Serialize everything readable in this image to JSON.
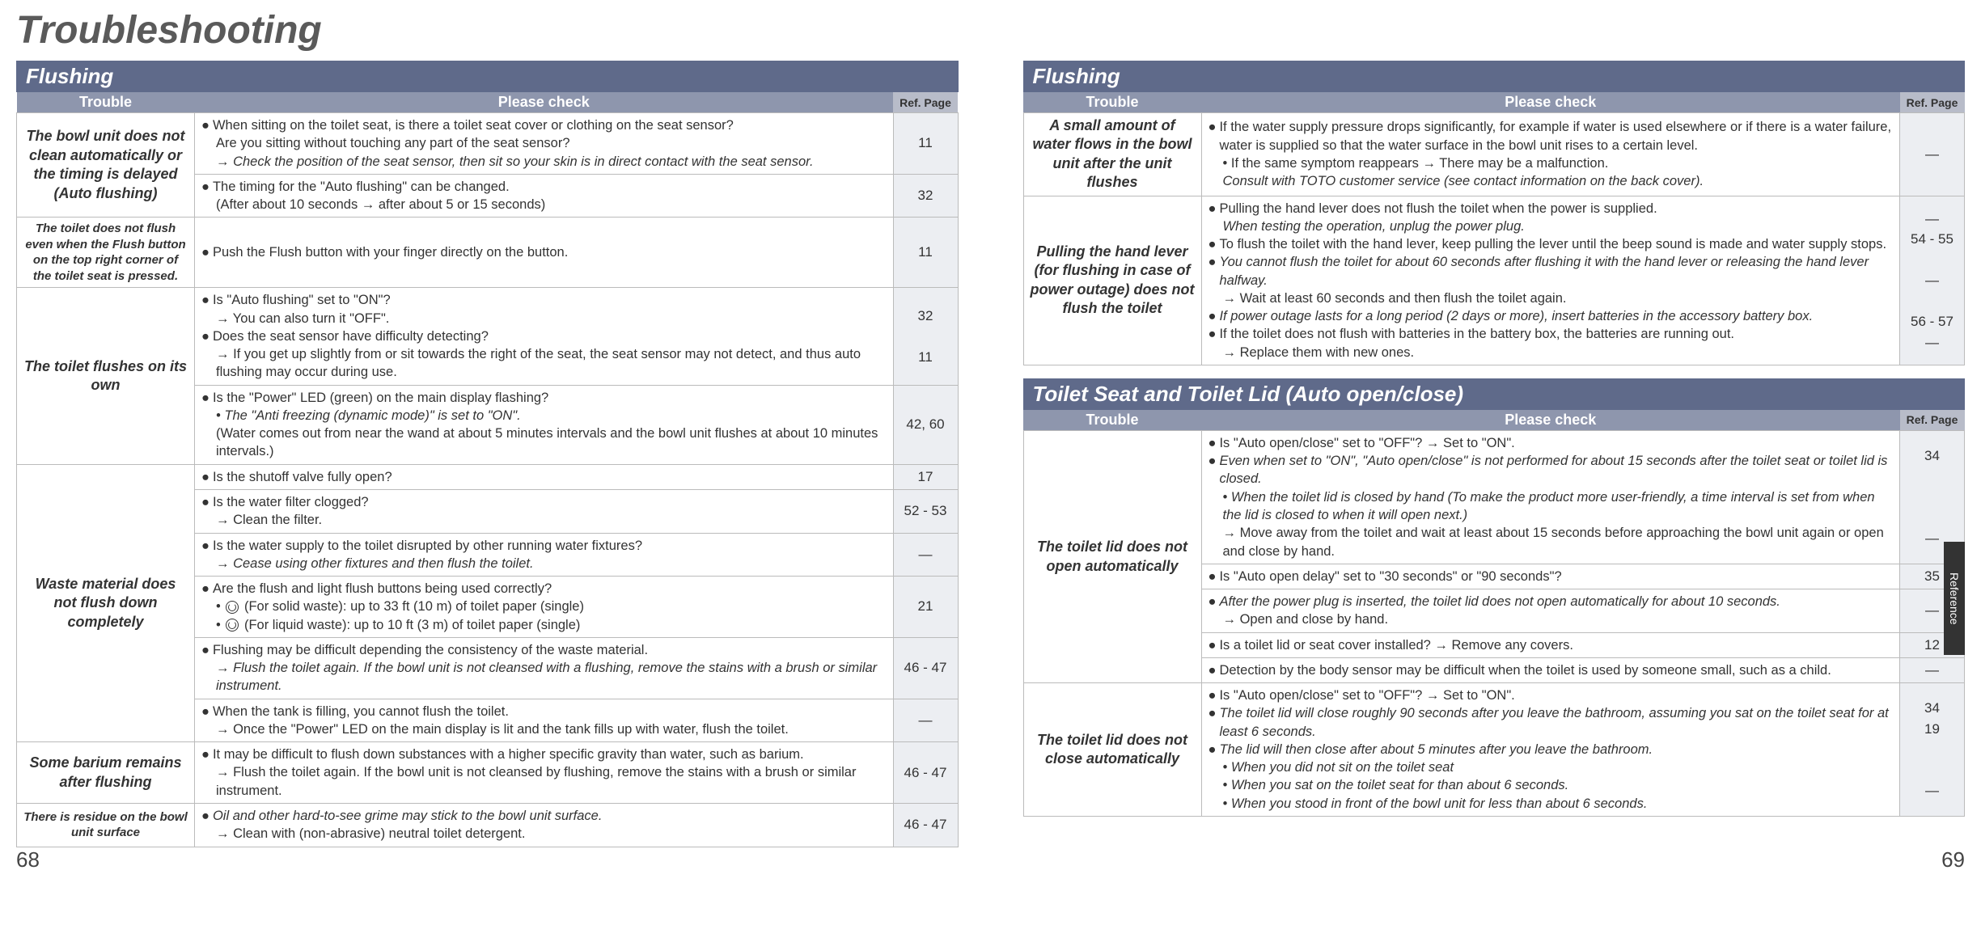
{
  "title": "Troubleshooting",
  "side_tab": "Reference",
  "page_left": "68",
  "page_right": "69",
  "columns": {
    "trouble": "Trouble",
    "check": "Please check",
    "ref": "Ref. Page"
  },
  "left": {
    "section1": {
      "title": "Flushing",
      "rows": [
        {
          "trouble": "The bowl unit does not clean automatically or the timing is delayed (Auto flushing)",
          "trouble_rowspan": 2,
          "checks": [
            {
              "lines": [
                {
                  "t": "bullet",
                  "text": "When sitting on the toilet seat, is there a toilet seat cover or clothing on the seat sensor?"
                },
                {
                  "t": "sub",
                  "text": "Are you sitting without touching any part of the seat sensor?"
                },
                {
                  "t": "sub italic arrow",
                  "text": "Check the position of the seat sensor, then sit so your skin is in direct contact with the seat sensor."
                }
              ],
              "ref": "11"
            },
            {
              "lines": [
                {
                  "t": "bullet",
                  "text": "The timing for the \"Auto flushing\" can be changed."
                },
                {
                  "t": "sub",
                  "text": "(After about 10 seconds → after about 5 or 15 seconds)"
                }
              ],
              "ref": "32"
            }
          ]
        },
        {
          "trouble": "The toilet does not flush even when the Flush button on the top right corner of the toilet seat is pressed.",
          "trouble_rowspan": 1,
          "trouble_small": true,
          "checks": [
            {
              "lines": [
                {
                  "t": "bullet",
                  "text": "Push the Flush button with your finger directly on the button."
                }
              ],
              "ref": "11"
            }
          ]
        },
        {
          "trouble": "The toilet flushes on its own",
          "trouble_rowspan": 2,
          "checks": [
            {
              "lines": [
                {
                  "t": "bullet",
                  "text": "Is \"Auto flushing\" set to \"ON\"?"
                },
                {
                  "t": "sub arrow",
                  "text": "You can also turn it \"OFF\"."
                },
                {
                  "t": "bullet",
                  "text": "Does the seat sensor have difficulty detecting?"
                },
                {
                  "t": "sub arrow",
                  "text": "If you get up slightly from or sit towards the right of the seat, the seat sensor may not detect, and thus auto flushing may occur during use."
                }
              ],
              "ref": "32\n\n11",
              "ref_multi": true
            },
            {
              "lines": [
                {
                  "t": "bullet",
                  "text": "Is the \"Power\" LED (green) on the main display flashing?"
                },
                {
                  "t": "sub dot italic",
                  "text": "The \"Anti freezing (dynamic mode)\" is set to \"ON\"."
                },
                {
                  "t": "sub",
                  "text": "(Water comes out from near the wand at about 5 minutes intervals and the bowl unit flushes at  about 10 minutes intervals.)"
                }
              ],
              "ref": "42, 60"
            }
          ]
        },
        {
          "trouble": "Waste material does not flush down completely",
          "trouble_rowspan": 6,
          "checks": [
            {
              "lines": [
                {
                  "t": "bullet",
                  "text": "Is the shutoff valve fully open?"
                }
              ],
              "ref": "17"
            },
            {
              "lines": [
                {
                  "t": "bullet",
                  "text": "Is the water filter clogged?"
                },
                {
                  "t": "sub arrow",
                  "text": "Clean the filter."
                }
              ],
              "ref": "52 - 53"
            },
            {
              "lines": [
                {
                  "t": "bullet",
                  "text": "Is the water supply to the toilet disrupted by other running water fixtures?"
                },
                {
                  "t": "sub italic arrow",
                  "text": "Cease using other fixtures and then flush the toilet."
                }
              ],
              "ref": "_"
            },
            {
              "lines": [
                {
                  "t": "bullet",
                  "text": "Are the flush and light flush buttons being used correctly?"
                },
                {
                  "t": "sub dot swirl",
                  "text": "(For solid waste): up to 33 ft (10 m) of toilet paper (single)"
                },
                {
                  "t": "sub dot swirl",
                  "text": "(For liquid waste): up to 10 ft (3 m) of toilet paper (single)"
                }
              ],
              "ref": "21"
            },
            {
              "lines": [
                {
                  "t": "bullet",
                  "text": "Flushing may be difficult depending the consistency of the waste material."
                },
                {
                  "t": "sub italic arrow",
                  "text": "Flush the toilet again. If the bowl unit is not cleansed with a flushing, remove the stains with a brush or similar instrument."
                }
              ],
              "ref": "46 - 47"
            },
            {
              "lines": [
                {
                  "t": "bullet",
                  "text": "When the tank is filling, you cannot flush the toilet."
                },
                {
                  "t": "sub arrow",
                  "text": "Once the \"Power\" LED on the main display is lit and the tank fills up with water, flush the toilet."
                }
              ],
              "ref": "_"
            }
          ]
        },
        {
          "trouble": "Some barium remains after flushing",
          "trouble_rowspan": 1,
          "checks": [
            {
              "lines": [
                {
                  "t": "bullet",
                  "text": "It may be difficult to flush down substances with a higher specific gravity than water, such as barium."
                },
                {
                  "t": "sub arrow",
                  "text": "Flush the toilet again. If the bowl unit is not cleansed by flushing, remove the stains with a brush or similar instrument."
                }
              ],
              "ref": "46 - 47"
            }
          ]
        },
        {
          "trouble": "There is residue on the bowl unit surface",
          "trouble_rowspan": 1,
          "trouble_small": true,
          "checks": [
            {
              "lines": [
                {
                  "t": "bullet italic",
                  "text": "Oil and other hard-to-see grime may stick to the bowl unit surface."
                },
                {
                  "t": "sub arrow",
                  "text": "Clean with (non-abrasive) neutral toilet detergent."
                }
              ],
              "ref": "46 - 47"
            }
          ]
        }
      ]
    }
  },
  "right": {
    "section1": {
      "title": "Flushing",
      "rows": [
        {
          "trouble": "A small amount of water flows in the bowl unit after the unit flushes",
          "trouble_rowspan": 1,
          "trouble_italic": true,
          "checks": [
            {
              "lines": [
                {
                  "t": "bullet",
                  "text": "If the water supply pressure drops significantly, for example if water is used elsewhere or if there is a water failure, water is supplied so that the water surface in the bowl unit rises to a certain level."
                },
                {
                  "t": "sub dot",
                  "text": "If the same symptom reappears → There may be a malfunction."
                },
                {
                  "t": "sub italic",
                  "text": "Consult with TOTO customer service  (see contact information on the back cover)."
                }
              ],
              "ref": "_"
            }
          ]
        },
        {
          "trouble": "Pulling the hand lever (for flushing in case of power outage) does not flush the toilet",
          "trouble_rowspan": 1,
          "checks": [
            {
              "lines": [
                {
                  "t": "bullet",
                  "text": "Pulling the hand lever does not flush the toilet when the power is supplied."
                },
                {
                  "t": "sub italic",
                  "text": "When testing the operation, unplug the power plug."
                },
                {
                  "t": "bullet",
                  "text": "To flush the toilet with the hand lever, keep pulling the lever until the beep sound is made and water supply stops."
                },
                {
                  "t": "bullet italic",
                  "text": "You cannot flush the toilet for about 60 seconds after flushing it with the hand lever or releasing the hand lever halfway."
                },
                {
                  "t": "sub arrow",
                  "text": "Wait at least 60 seconds and then flush the toilet again."
                },
                {
                  "t": "bullet italic",
                  "text": "If power outage lasts for a long period (2 days or more), insert batteries in the accessory battery box."
                },
                {
                  "t": "bullet",
                  "text": "If the toilet does not flush with batteries in the battery box, the batteries are running out."
                },
                {
                  "t": "sub arrow",
                  "text": "Replace them with new ones."
                }
              ],
              "ref": "_\n54 - 55\n\n_\n\n56 - 57\n_",
              "ref_multi": true
            }
          ]
        }
      ]
    },
    "section2": {
      "title": "Toilet Seat and Toilet Lid (Auto open/close)",
      "rows": [
        {
          "trouble": "The toilet lid does not open automatically",
          "trouble_rowspan": 5,
          "checks": [
            {
              "lines": [
                {
                  "t": "bullet",
                  "text": "Is \"Auto open/close\" set to \"OFF\"? → Set to \"ON\"."
                },
                {
                  "t": "bullet italic",
                  "text": "Even when set to \"ON\", \"Auto open/close\" is not performed for about 15 seconds after the toilet seat or toilet lid is closed."
                },
                {
                  "t": "sub dot italic",
                  "text": "When the toilet lid is closed by hand (To make the product more user-friendly, a time interval is set from when the lid is closed to when it will open next.)"
                },
                {
                  "t": "sub arrow",
                  "text": "Move away from the toilet and wait at least about 15 seconds before approaching the bowl unit again or open and close by hand."
                }
              ],
              "ref": "34\n\n\n\n_",
              "ref_multi": true
            },
            {
              "lines": [
                {
                  "t": "bullet",
                  "text": "Is \"Auto open delay\" set to \"30 seconds\" or \"90 seconds\"?"
                }
              ],
              "ref": "35"
            },
            {
              "lines": [
                {
                  "t": "bullet italic",
                  "text": "After the power plug is inserted, the toilet lid does not open automatically for about 10 seconds."
                },
                {
                  "t": "sub arrow",
                  "text": "Open and close by hand."
                }
              ],
              "ref": "_"
            },
            {
              "lines": [
                {
                  "t": "bullet",
                  "text": "Is a toilet lid or seat cover installed? → Remove any covers."
                }
              ],
              "ref": "12"
            },
            {
              "lines": [
                {
                  "t": "bullet",
                  "text": "Detection by the body sensor may be difficult when the toilet is used by someone small, such as a child."
                }
              ],
              "ref": "_"
            }
          ]
        },
        {
          "trouble": "The toilet lid does not close automatically",
          "trouble_rowspan": 1,
          "checks": [
            {
              "lines": [
                {
                  "t": "bullet",
                  "text": "Is \"Auto open/close\" set to \"OFF\"? → Set to \"ON\"."
                },
                {
                  "t": "bullet italic",
                  "text": "The toilet lid will close roughly 90 seconds after you leave the bathroom, assuming you sat on the toilet seat for at least 6 seconds."
                },
                {
                  "t": "bullet italic",
                  "text": "The lid will then close after about 5 minutes after you leave the bathroom."
                },
                {
                  "t": "sub dot italic",
                  "text": "When you did not sit on the toilet seat"
                },
                {
                  "t": "sub dot italic",
                  "text": "When you sat on the toilet seat for than about 6 seconds."
                },
                {
                  "t": "sub dot italic",
                  "text": "When you stood in front of the bowl unit for less than about 6 seconds."
                }
              ],
              "ref": "34\n19\n\n\n_",
              "ref_multi": true
            }
          ]
        }
      ]
    }
  }
}
